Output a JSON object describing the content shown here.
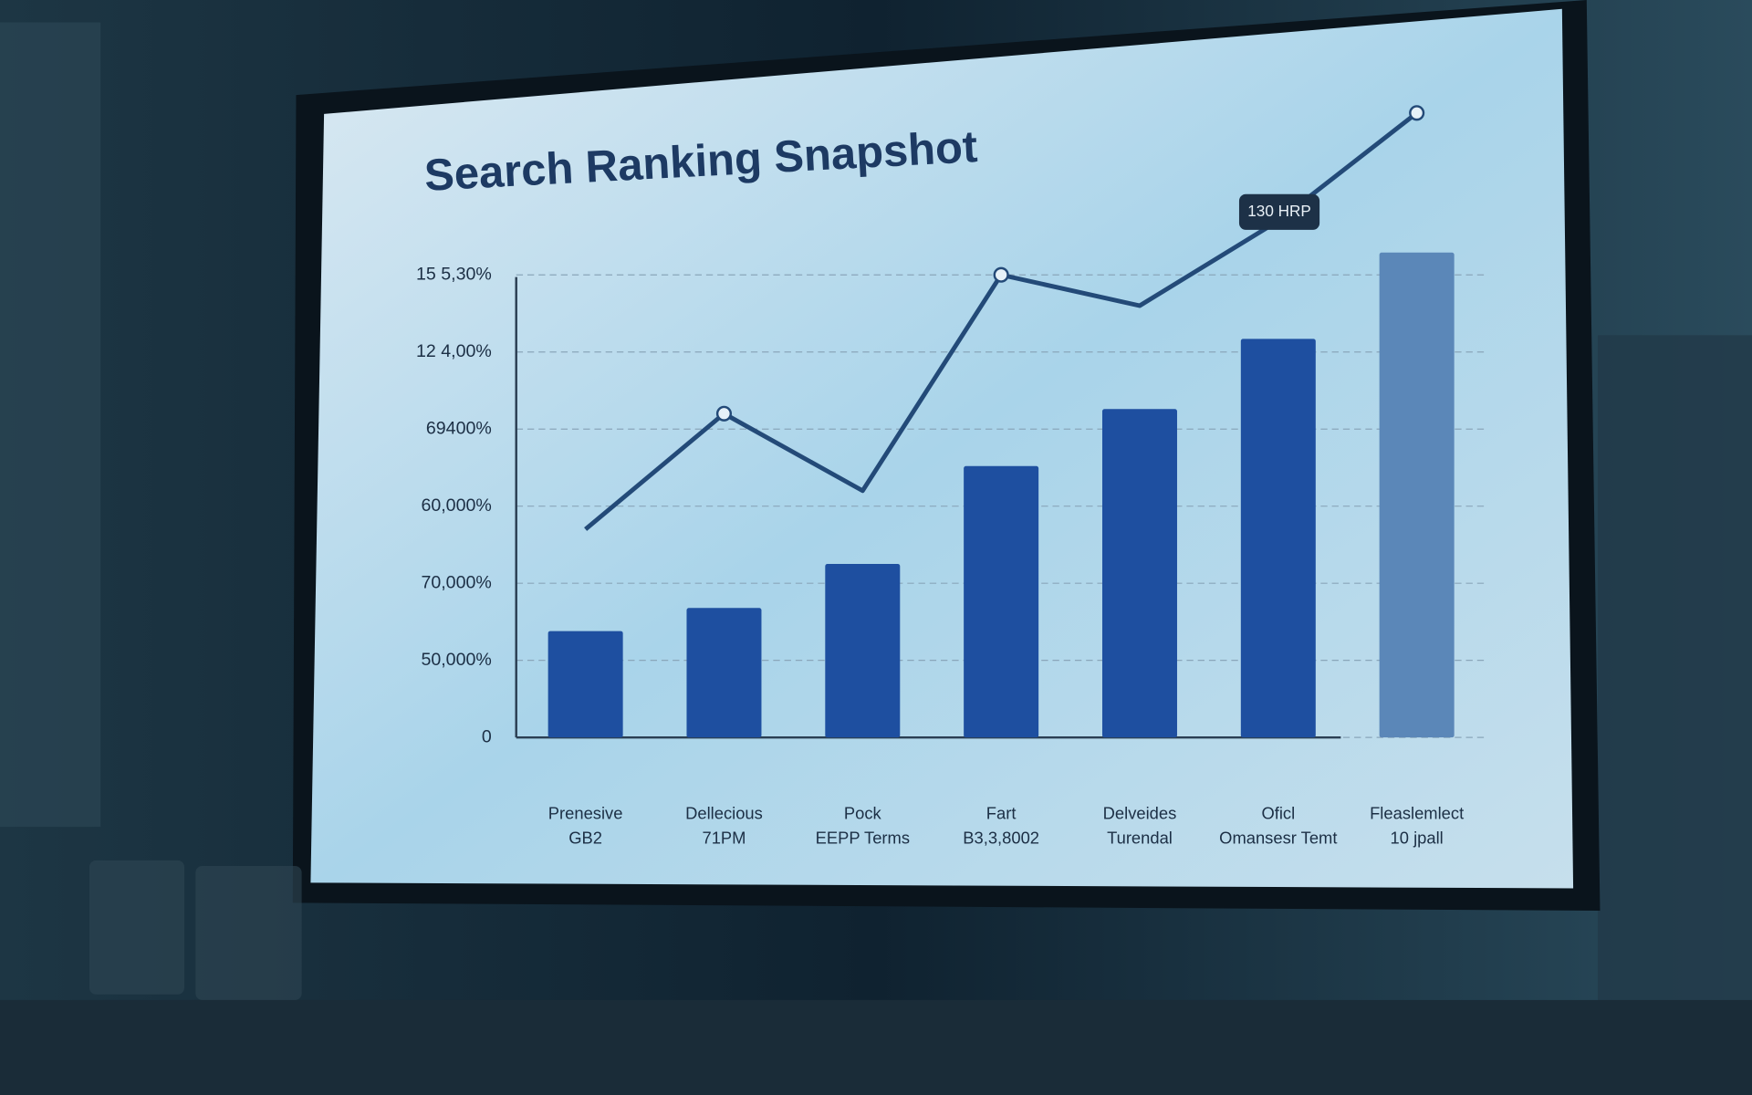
{
  "chart_data": {
    "type": "bar",
    "title": "Search Ranking Snapshot",
    "categories": [
      "Prenesive\nGB2",
      "Dellecious\n71PM",
      "Pock\nEEPP Terms",
      "Fart\nB3,3,8002",
      "Delveides\nTurendal",
      "Oficl\nOmansesr Temt",
      "Fleaslemlect\n10 jpall"
    ],
    "values": [
      1.38,
      1.68,
      2.25,
      3.52,
      4.26,
      5.17,
      6.29
    ],
    "colors": [
      "#1e4fa0",
      "#1e4fa0",
      "#1e4fa0",
      "#1e4fa0",
      "#1e4fa0",
      "#1e4fa0",
      "#5b87b8"
    ],
    "line_values": [
      2.7,
      4.2,
      3.2,
      6.0,
      5.6,
      6.7,
      8.1
    ],
    "line_color": "#234a78",
    "annotation": "130 HRP",
    "ylim": [
      0,
      8.5
    ],
    "yticks": [
      {
        "value": 0,
        "label": "0"
      },
      {
        "value": 1,
        "label": "50,000%"
      },
      {
        "value": 2,
        "label": "70,000%"
      },
      {
        "value": 3,
        "label": "60,000%"
      },
      {
        "value": 4,
        "label": "69400%"
      },
      {
        "value": 5,
        "label": "12 4,00%"
      },
      {
        "value": 6,
        "label": "15 5,30%"
      }
    ],
    "grid": true
  }
}
